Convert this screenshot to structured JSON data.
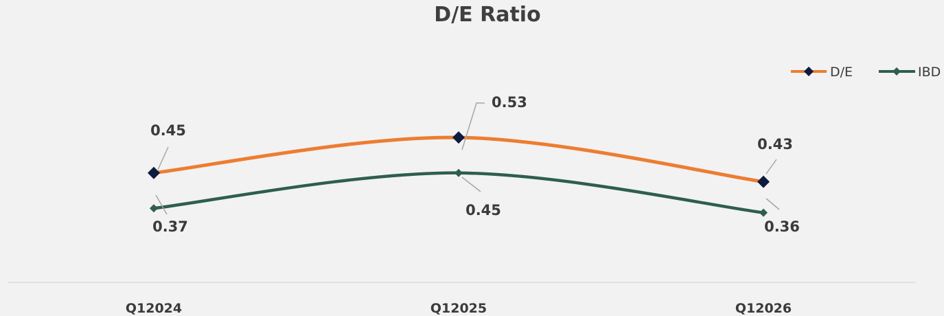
{
  "chart_data": {
    "type": "line",
    "title": "D/E Ratio",
    "categories": [
      "Q12024",
      "Q12025",
      "Q12026"
    ],
    "series": [
      {
        "name": "D/E",
        "values": [
          0.45,
          0.53,
          0.43
        ],
        "color": "#ed7d31",
        "marker_color": "#0d1b3e",
        "marker": "diamond"
      },
      {
        "name": "IBD",
        "values": [
          0.37,
          0.45,
          0.36
        ],
        "color": "#2e5e4e",
        "marker_color": "#2e5e4e",
        "marker": "diamond"
      }
    ],
    "data_labels": [
      "0.45",
      "0.53",
      "0.43",
      "0.37",
      "0.45",
      "0.36"
    ],
    "legend_position": "top-right",
    "xlabel": "",
    "ylabel": "",
    "smooth": true,
    "grid": false
  }
}
